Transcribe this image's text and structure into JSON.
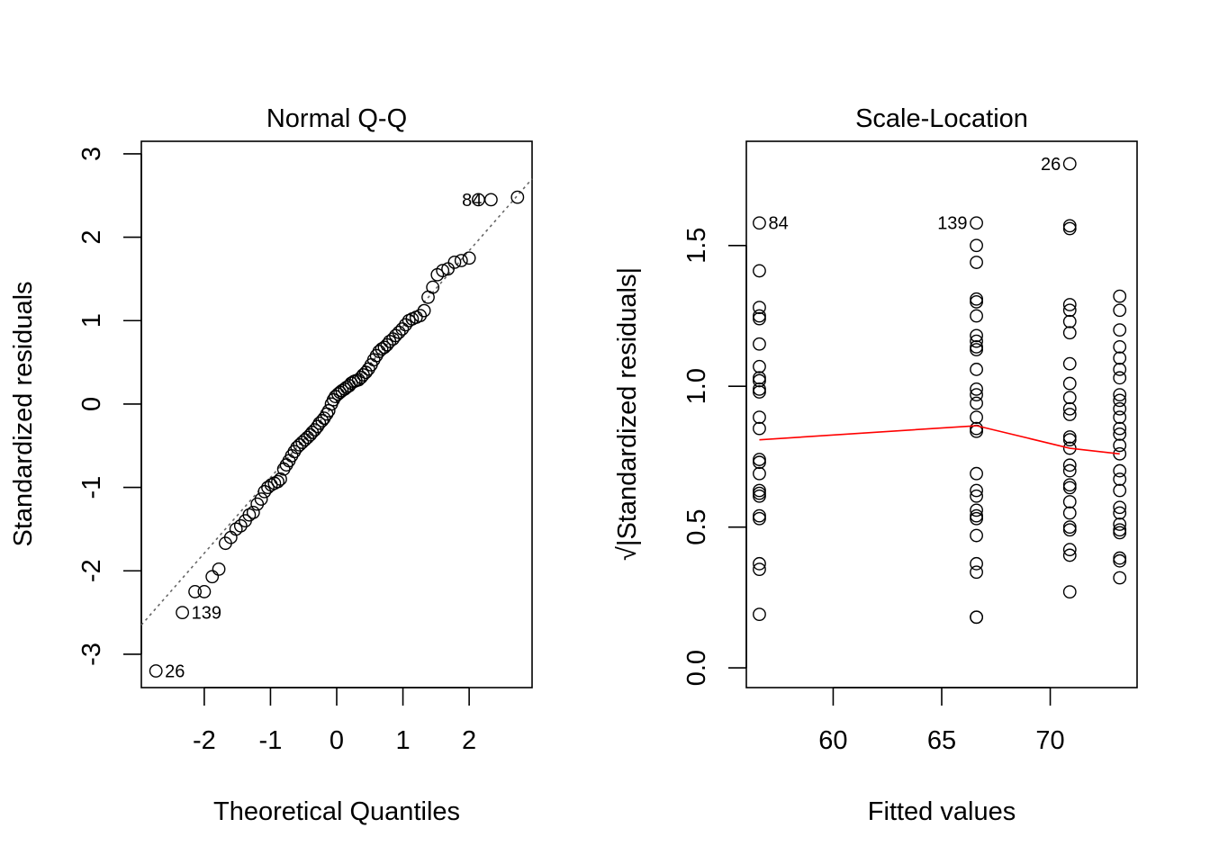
{
  "chart_data": [
    {
      "type": "scatter",
      "title": "Normal Q-Q",
      "xlabel": "Theoretical Quantiles",
      "ylabel": "Standardized residuals",
      "xlim": [
        -2.95,
        2.95
      ],
      "ylim": [
        -3.4,
        3.15
      ],
      "xticks": [
        -2,
        -1,
        0,
        1,
        2
      ],
      "yticks": [
        -3,
        -2,
        -1,
        0,
        1,
        2,
        3
      ],
      "reference_line": {
        "style": "dotted",
        "color": "#666666",
        "points": [
          [
            -2.95,
            -2.65
          ],
          [
            2.95,
            2.7
          ]
        ]
      },
      "points": [
        [
          -2.73,
          -3.2
        ],
        [
          -2.33,
          -2.5
        ],
        [
          -2.14,
          -2.25
        ],
        [
          -2.0,
          -2.25
        ],
        [
          -1.88,
          -2.07
        ],
        [
          -1.78,
          -1.98
        ],
        [
          -1.68,
          -1.67
        ],
        [
          -1.6,
          -1.6
        ],
        [
          -1.52,
          -1.5
        ],
        [
          -1.45,
          -1.46
        ],
        [
          -1.38,
          -1.4
        ],
        [
          -1.32,
          -1.33
        ],
        [
          -1.26,
          -1.3
        ],
        [
          -1.2,
          -1.2
        ],
        [
          -1.14,
          -1.14
        ],
        [
          -1.09,
          -1.05
        ],
        [
          -1.04,
          -1.0
        ],
        [
          -0.99,
          -0.97
        ],
        [
          -0.94,
          -0.95
        ],
        [
          -0.89,
          -0.93
        ],
        [
          -0.85,
          -0.9
        ],
        [
          -0.8,
          -0.78
        ],
        [
          -0.76,
          -0.73
        ],
        [
          -0.72,
          -0.68
        ],
        [
          -0.68,
          -0.62
        ],
        [
          -0.64,
          -0.57
        ],
        [
          -0.6,
          -0.52
        ],
        [
          -0.56,
          -0.49
        ],
        [
          -0.52,
          -0.46
        ],
        [
          -0.48,
          -0.43
        ],
        [
          -0.44,
          -0.4
        ],
        [
          -0.4,
          -0.37
        ],
        [
          -0.37,
          -0.34
        ],
        [
          -0.33,
          -0.31
        ],
        [
          -0.29,
          -0.27
        ],
        [
          -0.26,
          -0.23
        ],
        [
          -0.22,
          -0.2
        ],
        [
          -0.19,
          -0.17
        ],
        [
          -0.15,
          -0.12
        ],
        [
          -0.12,
          -0.08
        ],
        [
          -0.08,
          0.0
        ],
        [
          -0.05,
          0.05
        ],
        [
          -0.02,
          0.09
        ],
        [
          0.02,
          0.12
        ],
        [
          0.05,
          0.14
        ],
        [
          0.08,
          0.16
        ],
        [
          0.12,
          0.18
        ],
        [
          0.15,
          0.2
        ],
        [
          0.19,
          0.22
        ],
        [
          0.22,
          0.25
        ],
        [
          0.26,
          0.27
        ],
        [
          0.29,
          0.28
        ],
        [
          0.33,
          0.29
        ],
        [
          0.37,
          0.32
        ],
        [
          0.4,
          0.35
        ],
        [
          0.44,
          0.38
        ],
        [
          0.48,
          0.42
        ],
        [
          0.52,
          0.47
        ],
        [
          0.56,
          0.53
        ],
        [
          0.6,
          0.58
        ],
        [
          0.64,
          0.63
        ],
        [
          0.68,
          0.66
        ],
        [
          0.72,
          0.68
        ],
        [
          0.76,
          0.71
        ],
        [
          0.8,
          0.75
        ],
        [
          0.85,
          0.78
        ],
        [
          0.89,
          0.82
        ],
        [
          0.94,
          0.86
        ],
        [
          0.99,
          0.9
        ],
        [
          1.04,
          0.95
        ],
        [
          1.09,
          1.0
        ],
        [
          1.14,
          1.02
        ],
        [
          1.2,
          1.04
        ],
        [
          1.26,
          1.06
        ],
        [
          1.32,
          1.12
        ],
        [
          1.38,
          1.28
        ],
        [
          1.45,
          1.4
        ],
        [
          1.52,
          1.55
        ],
        [
          1.6,
          1.6
        ],
        [
          1.68,
          1.62
        ],
        [
          1.78,
          1.7
        ],
        [
          1.88,
          1.72
        ],
        [
          2.0,
          1.75
        ],
        [
          2.14,
          2.45
        ],
        [
          2.33,
          2.45
        ],
        [
          2.73,
          2.48
        ]
      ],
      "annotations": [
        {
          "label": "26",
          "x": -2.73,
          "y": -3.2,
          "side": "right"
        },
        {
          "label": "139",
          "x": -2.33,
          "y": -2.5,
          "side": "right"
        },
        {
          "label": "84",
          "x": 2.33,
          "y": 2.45,
          "side": "left"
        }
      ]
    },
    {
      "type": "scatter",
      "title": "Scale-Location",
      "xlabel": "Fitted values",
      "ylabel": "√|Standardized residuals|",
      "xlim": [
        56.0,
        74.0
      ],
      "ylim": [
        -0.07,
        1.87
      ],
      "xticks": [
        60,
        65,
        70
      ],
      "yticks": [
        0.0,
        0.5,
        1.0,
        1.5
      ],
      "yticklabels": [
        "0.0",
        "0.5",
        "1.0",
        "1.5"
      ],
      "smoother": {
        "color": "#ff0000",
        "points": [
          [
            56.6,
            0.81
          ],
          [
            66.6,
            0.86
          ],
          [
            70.9,
            0.78
          ],
          [
            73.2,
            0.76
          ]
        ]
      },
      "points": [
        [
          56.6,
          1.58
        ],
        [
          56.6,
          1.41
        ],
        [
          56.6,
          1.28
        ],
        [
          56.6,
          1.25
        ],
        [
          56.6,
          1.24
        ],
        [
          56.6,
          1.15
        ],
        [
          56.6,
          1.07
        ],
        [
          56.6,
          1.03
        ],
        [
          56.6,
          1.02
        ],
        [
          56.6,
          0.99
        ],
        [
          56.6,
          0.98
        ],
        [
          56.6,
          0.89
        ],
        [
          56.6,
          0.85
        ],
        [
          56.6,
          0.74
        ],
        [
          56.6,
          0.73
        ],
        [
          56.6,
          0.69
        ],
        [
          56.6,
          0.63
        ],
        [
          56.6,
          0.62
        ],
        [
          56.6,
          0.61
        ],
        [
          56.6,
          0.54
        ],
        [
          56.6,
          0.53
        ],
        [
          56.6,
          0.37
        ],
        [
          56.6,
          0.35
        ],
        [
          56.6,
          0.19
        ],
        [
          66.6,
          1.58
        ],
        [
          66.6,
          1.5
        ],
        [
          66.6,
          1.44
        ],
        [
          66.6,
          1.31
        ],
        [
          66.6,
          1.3
        ],
        [
          66.6,
          1.25
        ],
        [
          66.6,
          1.18
        ],
        [
          66.6,
          1.16
        ],
        [
          66.6,
          1.14
        ],
        [
          66.6,
          1.13
        ],
        [
          66.6,
          1.06
        ],
        [
          66.6,
          0.99
        ],
        [
          66.6,
          0.97
        ],
        [
          66.6,
          0.94
        ],
        [
          66.6,
          0.89
        ],
        [
          66.6,
          0.85
        ],
        [
          66.6,
          0.84
        ],
        [
          66.6,
          0.69
        ],
        [
          66.6,
          0.63
        ],
        [
          66.6,
          0.61
        ],
        [
          66.6,
          0.56
        ],
        [
          66.6,
          0.54
        ],
        [
          66.6,
          0.53
        ],
        [
          66.6,
          0.47
        ],
        [
          66.6,
          0.37
        ],
        [
          66.6,
          0.34
        ],
        [
          66.6,
          0.18
        ],
        [
          66.6,
          0.18
        ],
        [
          70.9,
          1.79
        ],
        [
          70.9,
          1.57
        ],
        [
          70.9,
          1.56
        ],
        [
          70.9,
          1.29
        ],
        [
          70.9,
          1.27
        ],
        [
          70.9,
          1.23
        ],
        [
          70.9,
          1.19
        ],
        [
          70.9,
          1.08
        ],
        [
          70.9,
          1.01
        ],
        [
          70.9,
          0.96
        ],
        [
          70.9,
          0.92
        ],
        [
          70.9,
          0.9
        ],
        [
          70.9,
          0.82
        ],
        [
          70.9,
          0.81
        ],
        [
          70.9,
          0.78
        ],
        [
          70.9,
          0.72
        ],
        [
          70.9,
          0.7
        ],
        [
          70.9,
          0.65
        ],
        [
          70.9,
          0.64
        ],
        [
          70.9,
          0.59
        ],
        [
          70.9,
          0.55
        ],
        [
          70.9,
          0.5
        ],
        [
          70.9,
          0.49
        ],
        [
          70.9,
          0.42
        ],
        [
          70.9,
          0.4
        ],
        [
          70.9,
          0.27
        ],
        [
          73.2,
          1.32
        ],
        [
          73.2,
          1.27
        ],
        [
          73.2,
          1.2
        ],
        [
          73.2,
          1.14
        ],
        [
          73.2,
          1.1
        ],
        [
          73.2,
          1.06
        ],
        [
          73.2,
          1.03
        ],
        [
          73.2,
          0.97
        ],
        [
          73.2,
          0.95
        ],
        [
          73.2,
          0.92
        ],
        [
          73.2,
          0.89
        ],
        [
          73.2,
          0.85
        ],
        [
          73.2,
          0.83
        ],
        [
          73.2,
          0.79
        ],
        [
          73.2,
          0.76
        ],
        [
          73.2,
          0.7
        ],
        [
          73.2,
          0.67
        ],
        [
          73.2,
          0.63
        ],
        [
          73.2,
          0.57
        ],
        [
          73.2,
          0.55
        ],
        [
          73.2,
          0.51
        ],
        [
          73.2,
          0.49
        ],
        [
          73.2,
          0.48
        ],
        [
          73.2,
          0.39
        ],
        [
          73.2,
          0.38
        ],
        [
          73.2,
          0.32
        ]
      ],
      "annotations": [
        {
          "label": "26",
          "x": 70.9,
          "y": 1.79,
          "side": "left"
        },
        {
          "label": "139",
          "x": 66.6,
          "y": 1.58,
          "side": "left"
        },
        {
          "label": "84",
          "x": 56.6,
          "y": 1.58,
          "side": "right"
        }
      ]
    }
  ]
}
